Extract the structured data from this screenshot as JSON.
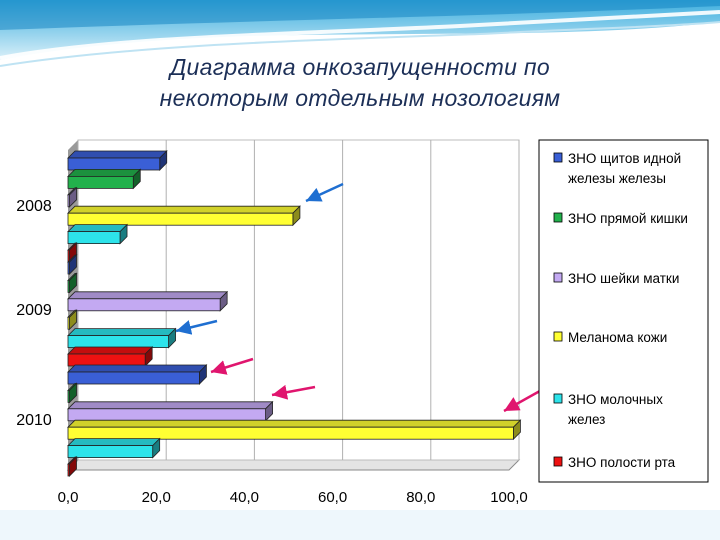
{
  "page": {
    "title_line1": "Диаграмма онкозапущенности по",
    "title_line2": "некоторым отдельным нозологиям"
  },
  "chart_data": {
    "type": "bar",
    "orientation": "horizontal",
    "style": "3d",
    "categories": [
      "2008",
      "2009",
      "2010"
    ],
    "series": [
      {
        "name": "ЗНО щитовидной железы железы",
        "legend_lines": [
          "ЗНО щитов идной",
          "железы железы"
        ],
        "color": "#3a5fd6",
        "values": [
          20.8,
          0.0,
          29.8
        ]
      },
      {
        "name": "ЗНО прямой кишки",
        "legend_lines": [
          "ЗНО прямой кишки"
        ],
        "color": "#22b14c",
        "values": [
          14.8,
          0.0,
          0.0
        ]
      },
      {
        "name": "ЗНО шейки матки",
        "legend_lines": [
          "ЗНО шейки матки"
        ],
        "color": "#c3a9f2",
        "values": [
          0.0,
          34.5,
          44.8
        ]
      },
      {
        "name": "Меланома кожи",
        "legend_lines": [
          "Меланома кожи"
        ],
        "color": "#ffff33",
        "values": [
          51.0,
          0.0,
          101.0
        ]
      },
      {
        "name": "ЗНО молочных желез",
        "legend_lines": [
          "ЗНО молочных",
          "желез"
        ],
        "color": "#2de3ea",
        "values": [
          11.8,
          22.8,
          19.2
        ]
      },
      {
        "name": "ЗНО полости рта",
        "legend_lines": [
          "ЗНО полости рта"
        ],
        "color": "#ee1111",
        "values": [
          0.0,
          17.5,
          0.0
        ]
      }
    ],
    "xlim": [
      0,
      100
    ],
    "x_ticks": [
      "0,0",
      "20,0",
      "40,0",
      "60,0",
      "80,0",
      "100,0"
    ],
    "grid": "vertical",
    "legend": "right",
    "annotations": "arrows pointing to highlighted bars"
  }
}
